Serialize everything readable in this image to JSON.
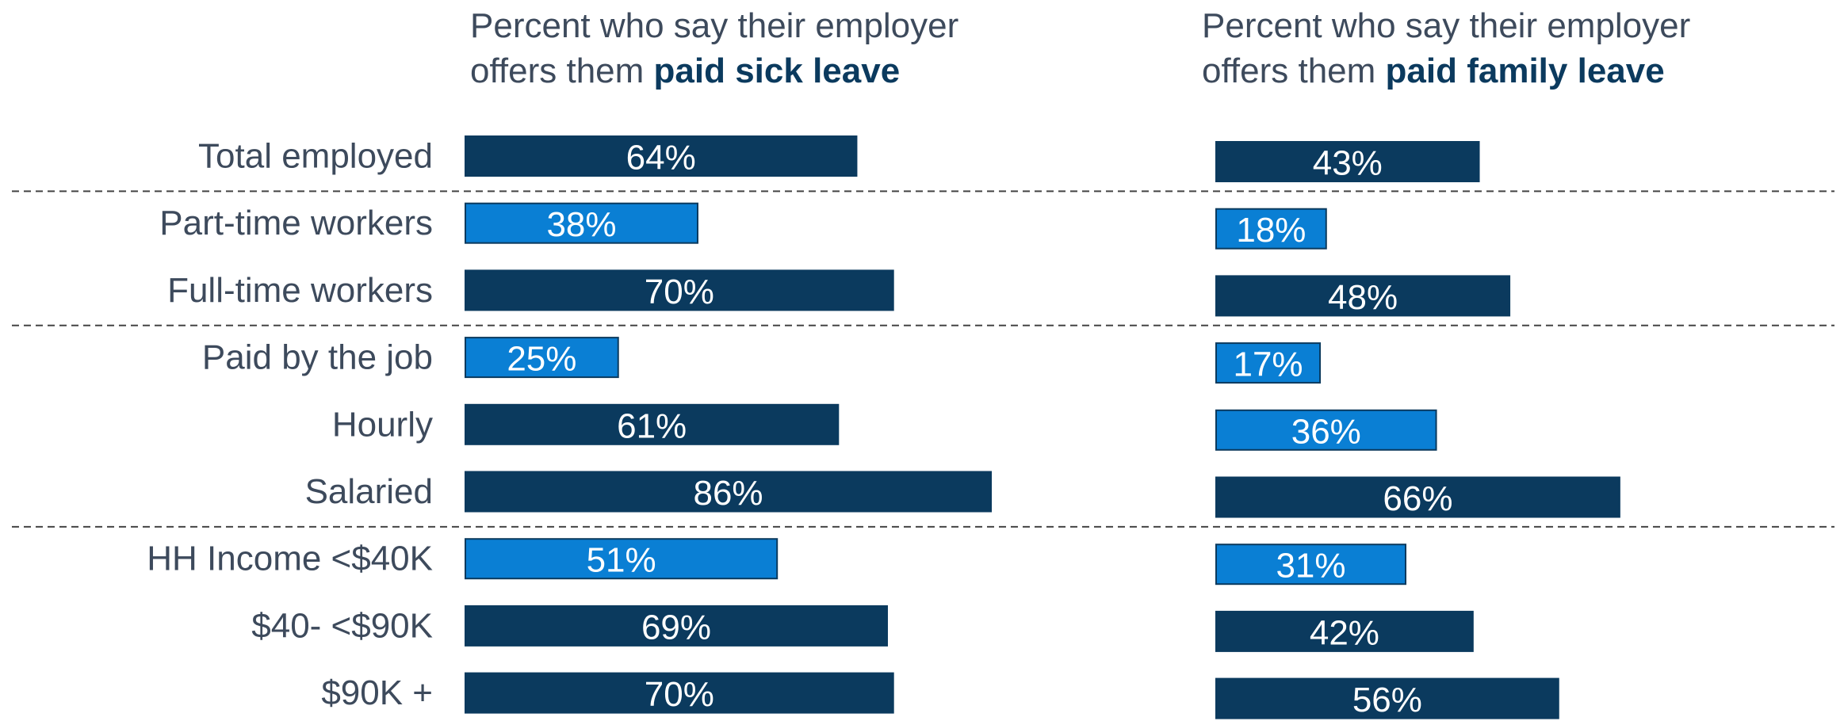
{
  "chart_data": [
    {
      "type": "bar",
      "orientation": "horizontal",
      "title": "Percent who say their employer offers them",
      "title_emphasis": "paid sick leave",
      "categories": [
        "Total employed",
        "Part-time workers",
        "Full-time workers",
        "Paid by the job",
        "Hourly",
        "Salaried",
        "HH Income <$40K",
        "$40- <$90K",
        "$90K +"
      ],
      "values": [
        64,
        38,
        70,
        25,
        61,
        86,
        51,
        69,
        70
      ],
      "value_labels": [
        "64%",
        "38%",
        "70%",
        "25%",
        "61%",
        "86%",
        "51%",
        "69%",
        "70%"
      ],
      "colors": [
        "#0b3a5e",
        "#0a7fd4",
        "#0b3a5e",
        "#0a7fd4",
        "#0b3a5e",
        "#0b3a5e",
        "#0a7fd4",
        "#0b3a5e",
        "#0b3a5e"
      ],
      "xlim": [
        0,
        100
      ]
    },
    {
      "type": "bar",
      "orientation": "horizontal",
      "title": "Percent who say their employer offers them",
      "title_emphasis": "paid family leave",
      "values": [
        43,
        18,
        48,
        17,
        36,
        66,
        31,
        42,
        56
      ],
      "value_labels": [
        "43%",
        "18%",
        "48%",
        "17%",
        "36%",
        "66%",
        "31%",
        "42%",
        "56%"
      ],
      "colors": [
        "#0b3a5e",
        "#0a7fd4",
        "#0b3a5e",
        "#0a7fd4",
        "#0a7fd4",
        "#0b3a5e",
        "#0a7fd4",
        "#0b3a5e",
        "#0b3a5e"
      ],
      "xlim": [
        0,
        100
      ]
    }
  ]
}
